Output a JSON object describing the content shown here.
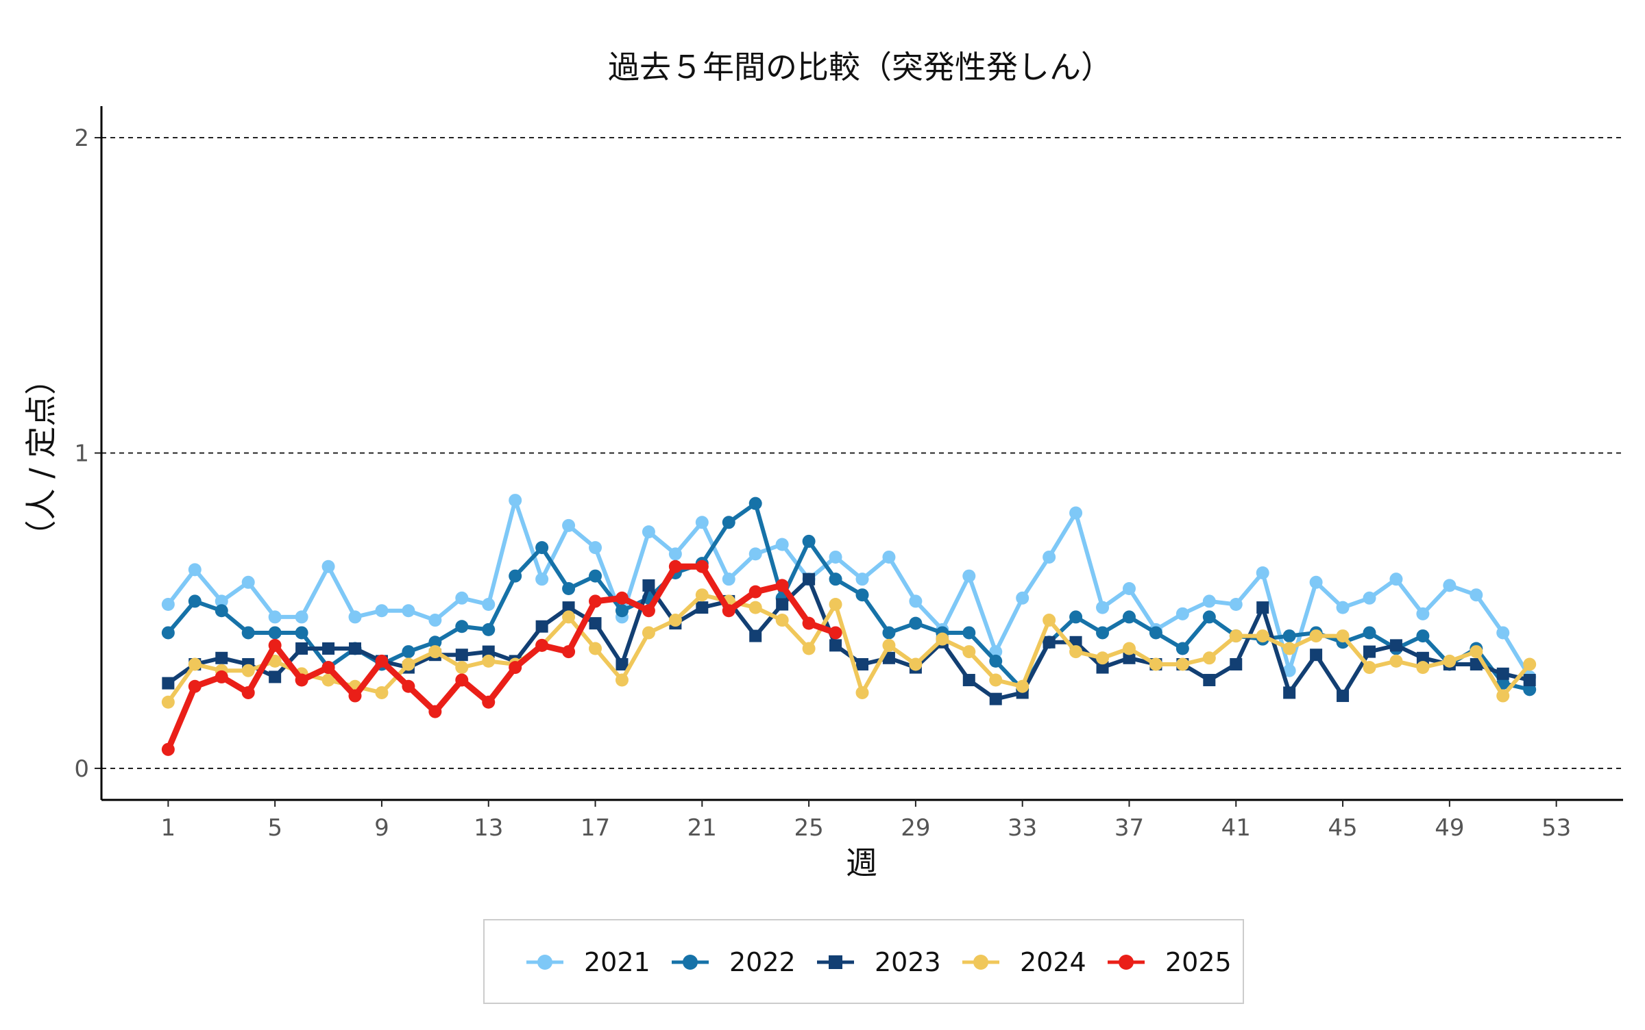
{
  "chart_data": {
    "type": "line",
    "title": "過去５年間の比較（突発性発しん）",
    "xlabel": "週",
    "ylabel": "（人 / 定点）",
    "xlim": [
      -1.5,
      55.5
    ],
    "ylim": [
      -0.1,
      2.1
    ],
    "x_ticks": [
      1,
      5,
      9,
      13,
      17,
      21,
      25,
      29,
      33,
      37,
      41,
      45,
      49,
      53
    ],
    "y_ticks": [
      0,
      1,
      2
    ],
    "grid": "horizontal dashed",
    "legend_position": "bottom",
    "series": [
      {
        "name": "2021",
        "color": "#7ec8f7",
        "marker": "circle",
        "values": [
          0.52,
          0.63,
          0.53,
          0.59,
          0.48,
          0.48,
          0.64,
          0.48,
          0.5,
          0.5,
          0.47,
          0.54,
          0.52,
          0.85,
          0.6,
          0.77,
          0.7,
          0.48,
          0.75,
          0.68,
          0.78,
          0.6,
          0.68,
          0.71,
          0.6,
          0.67,
          0.6,
          0.67,
          0.53,
          0.44,
          0.61,
          0.37,
          0.54,
          0.67,
          0.81,
          0.51,
          0.57,
          0.44,
          0.49,
          0.53,
          0.52,
          0.62,
          0.31,
          0.59,
          0.51,
          0.54,
          0.6,
          0.49,
          0.58,
          0.55,
          0.43,
          0.29
        ]
      },
      {
        "name": "2022",
        "color": "#1672a8",
        "marker": "circle",
        "values": [
          0.43,
          0.53,
          0.5,
          0.43,
          0.43,
          0.43,
          0.32,
          0.38,
          0.33,
          0.37,
          0.4,
          0.45,
          0.44,
          0.61,
          0.7,
          0.57,
          0.61,
          0.5,
          0.54,
          0.62,
          0.65,
          0.78,
          0.84,
          0.54,
          0.72,
          0.6,
          0.55,
          0.43,
          0.46,
          0.43,
          0.43,
          0.34,
          0.25,
          0.4,
          0.48,
          0.43,
          0.48,
          0.43,
          0.38,
          0.48,
          0.42,
          0.41,
          0.42,
          0.43,
          0.4,
          0.43,
          0.38,
          0.42,
          0.33,
          0.38,
          0.27,
          0.25
        ]
      },
      {
        "name": "2023",
        "color": "#123f73",
        "marker": "square",
        "values": [
          0.27,
          0.33,
          0.35,
          0.33,
          0.29,
          0.38,
          0.38,
          0.38,
          0.34,
          0.32,
          0.36,
          0.36,
          0.37,
          0.34,
          0.45,
          0.51,
          0.46,
          0.33,
          0.58,
          0.46,
          0.51,
          0.53,
          0.42,
          0.52,
          0.6,
          0.39,
          0.33,
          0.35,
          0.32,
          0.4,
          0.28,
          0.22,
          0.24,
          0.4,
          0.4,
          0.32,
          0.35,
          0.33,
          0.33,
          0.28,
          0.33,
          0.51,
          0.24,
          0.36,
          0.23,
          0.37,
          0.39,
          0.35,
          0.33,
          0.33,
          0.3,
          0.28
        ]
      },
      {
        "name": "2024",
        "color": "#f0c75a",
        "marker": "circle",
        "values": [
          0.21,
          0.33,
          0.31,
          0.31,
          0.34,
          0.3,
          0.28,
          0.26,
          0.24,
          0.33,
          0.37,
          0.32,
          0.34,
          0.33,
          0.39,
          0.48,
          0.38,
          0.28,
          0.43,
          0.47,
          0.55,
          0.53,
          0.51,
          0.47,
          0.38,
          0.52,
          0.24,
          0.39,
          0.33,
          0.41,
          0.37,
          0.28,
          0.26,
          0.47,
          0.37,
          0.35,
          0.38,
          0.33,
          0.33,
          0.35,
          0.42,
          0.42,
          0.38,
          0.42,
          0.42,
          0.32,
          0.34,
          0.32,
          0.34,
          0.37,
          0.23,
          0.33
        ]
      },
      {
        "name": "2025",
        "color": "#ea1f18",
        "marker": "circle",
        "values": [
          0.06,
          0.26,
          0.29,
          0.24,
          0.39,
          0.28,
          0.32,
          0.23,
          0.34,
          0.26,
          0.18,
          0.28,
          0.21,
          0.32,
          0.39,
          0.37,
          0.53,
          0.54,
          0.5,
          0.64,
          0.64,
          0.5,
          0.56,
          0.58,
          0.46,
          0.43
        ]
      }
    ]
  }
}
